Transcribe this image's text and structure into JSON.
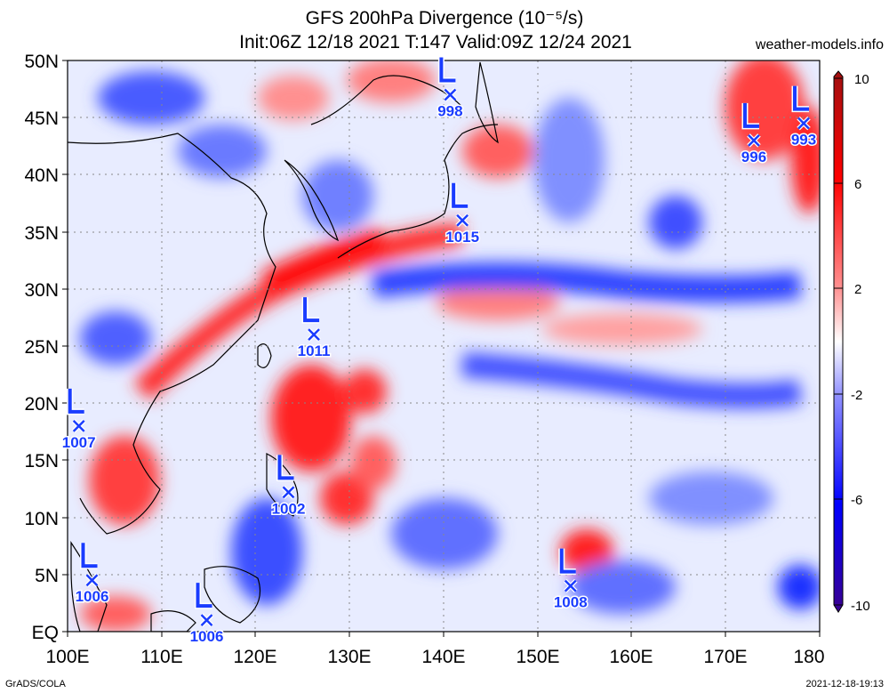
{
  "title_line1": "GFS 200hPa Divergence (10⁻⁵/s)",
  "title_line2": "Init:06Z 12/18 2021 T:147 Valid:09Z 12/24 2021",
  "site": "weather-models.info",
  "footer_left": "GrADS/COLA",
  "footer_right": "2021-12-18-19:13",
  "lat_labels": [
    "50N",
    "45N",
    "40N",
    "35N",
    "30N",
    "25N",
    "20N",
    "15N",
    "10N",
    "5N",
    "EQ"
  ],
  "lon_labels": [
    "100E",
    "110E",
    "120E",
    "130E",
    "140E",
    "150E",
    "160E",
    "170E",
    "180"
  ],
  "colorbar_labels": [
    "10",
    "6",
    "2",
    "-2",
    "-6",
    "-10"
  ],
  "colors": {
    "positive": "#ff0000",
    "negative": "#0000ff",
    "low_marker": "#1a3cff"
  },
  "lows": [
    {
      "label": "L",
      "value": "998",
      "lat": 47,
      "lon": 140.7
    },
    {
      "label": "L",
      "value": "996",
      "lat": 43,
      "lon": 173
    },
    {
      "label": "L",
      "value": "993",
      "lat": 44.5,
      "lon": 178.3
    },
    {
      "label": "L",
      "value": "1015",
      "lat": 36,
      "lon": 142
    },
    {
      "label": "L",
      "value": "1011",
      "lat": 26,
      "lon": 126.2
    },
    {
      "label": "L",
      "value": "1007",
      "lat": 18,
      "lon": 101.2
    },
    {
      "label": "L",
      "value": "1002",
      "lat": 12.2,
      "lon": 123.5
    },
    {
      "label": "L",
      "value": "1006",
      "lat": 4.5,
      "lon": 102.6
    },
    {
      "label": "L",
      "value": "1008",
      "lat": 4,
      "lon": 153.5
    },
    {
      "label": "L",
      "value": "1006",
      "lat": 1,
      "lon": 114.8
    }
  ]
}
